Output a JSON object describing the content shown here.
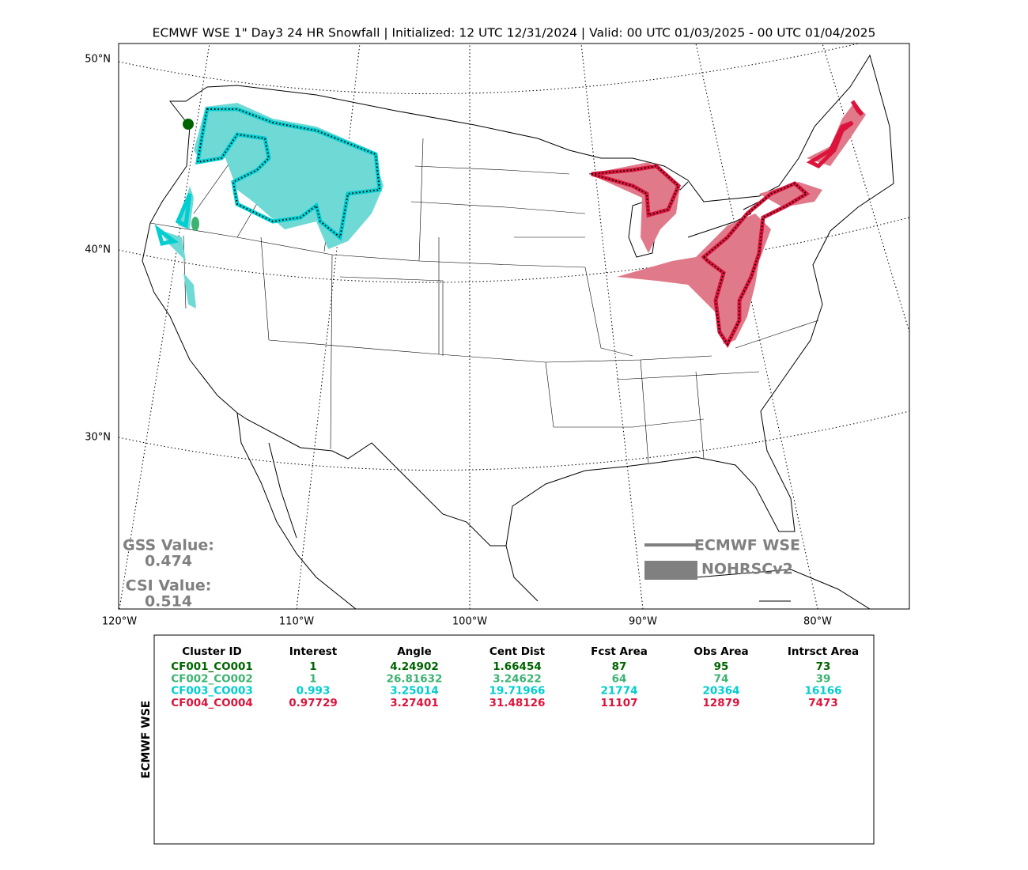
{
  "title": "ECMWF WSE 1\" Day3 24 HR Snowfall | Initialized: 12 UTC 12/31/2024 | Valid: 00 UTC 01/03/2025 - 00 UTC 01/04/2025",
  "map": {
    "lat_labels": [
      "50°N",
      "40°N",
      "30°N"
    ],
    "lon_labels": [
      "120°W",
      "110°W",
      "100°W",
      "90°W",
      "80°W"
    ],
    "gss_label": "GSS Value:",
    "gss_value": "0.474",
    "csi_label": "CSI Value:",
    "csi_value": "0.514",
    "legend": [
      "ECMWF WSE",
      "NOHRSCv2"
    ]
  },
  "table": {
    "side_label": "ECMWF WSE",
    "header": [
      "Cluster ID",
      "Interest",
      "Angle",
      "Cent Dist",
      "Fcst Area",
      "Obs Area",
      "Intrsct Area"
    ],
    "row_colors": [
      "#006400",
      "#3cb371",
      "#00ced1",
      "#dc143c"
    ],
    "rows": [
      [
        "CF001_CO001",
        "1",
        "4.24902",
        "1.66454",
        "87",
        "95",
        "73"
      ],
      [
        "CF002_CO002",
        "1",
        "26.81632",
        "3.24622",
        "64",
        "74",
        "39"
      ],
      [
        "CF003_CO003",
        "0.993",
        "3.25014",
        "19.71966",
        "21774",
        "20364",
        "16166"
      ],
      [
        "CF004_CO004",
        "0.97729",
        "3.27401",
        "31.48126",
        "11107",
        "12879",
        "7473"
      ]
    ]
  }
}
